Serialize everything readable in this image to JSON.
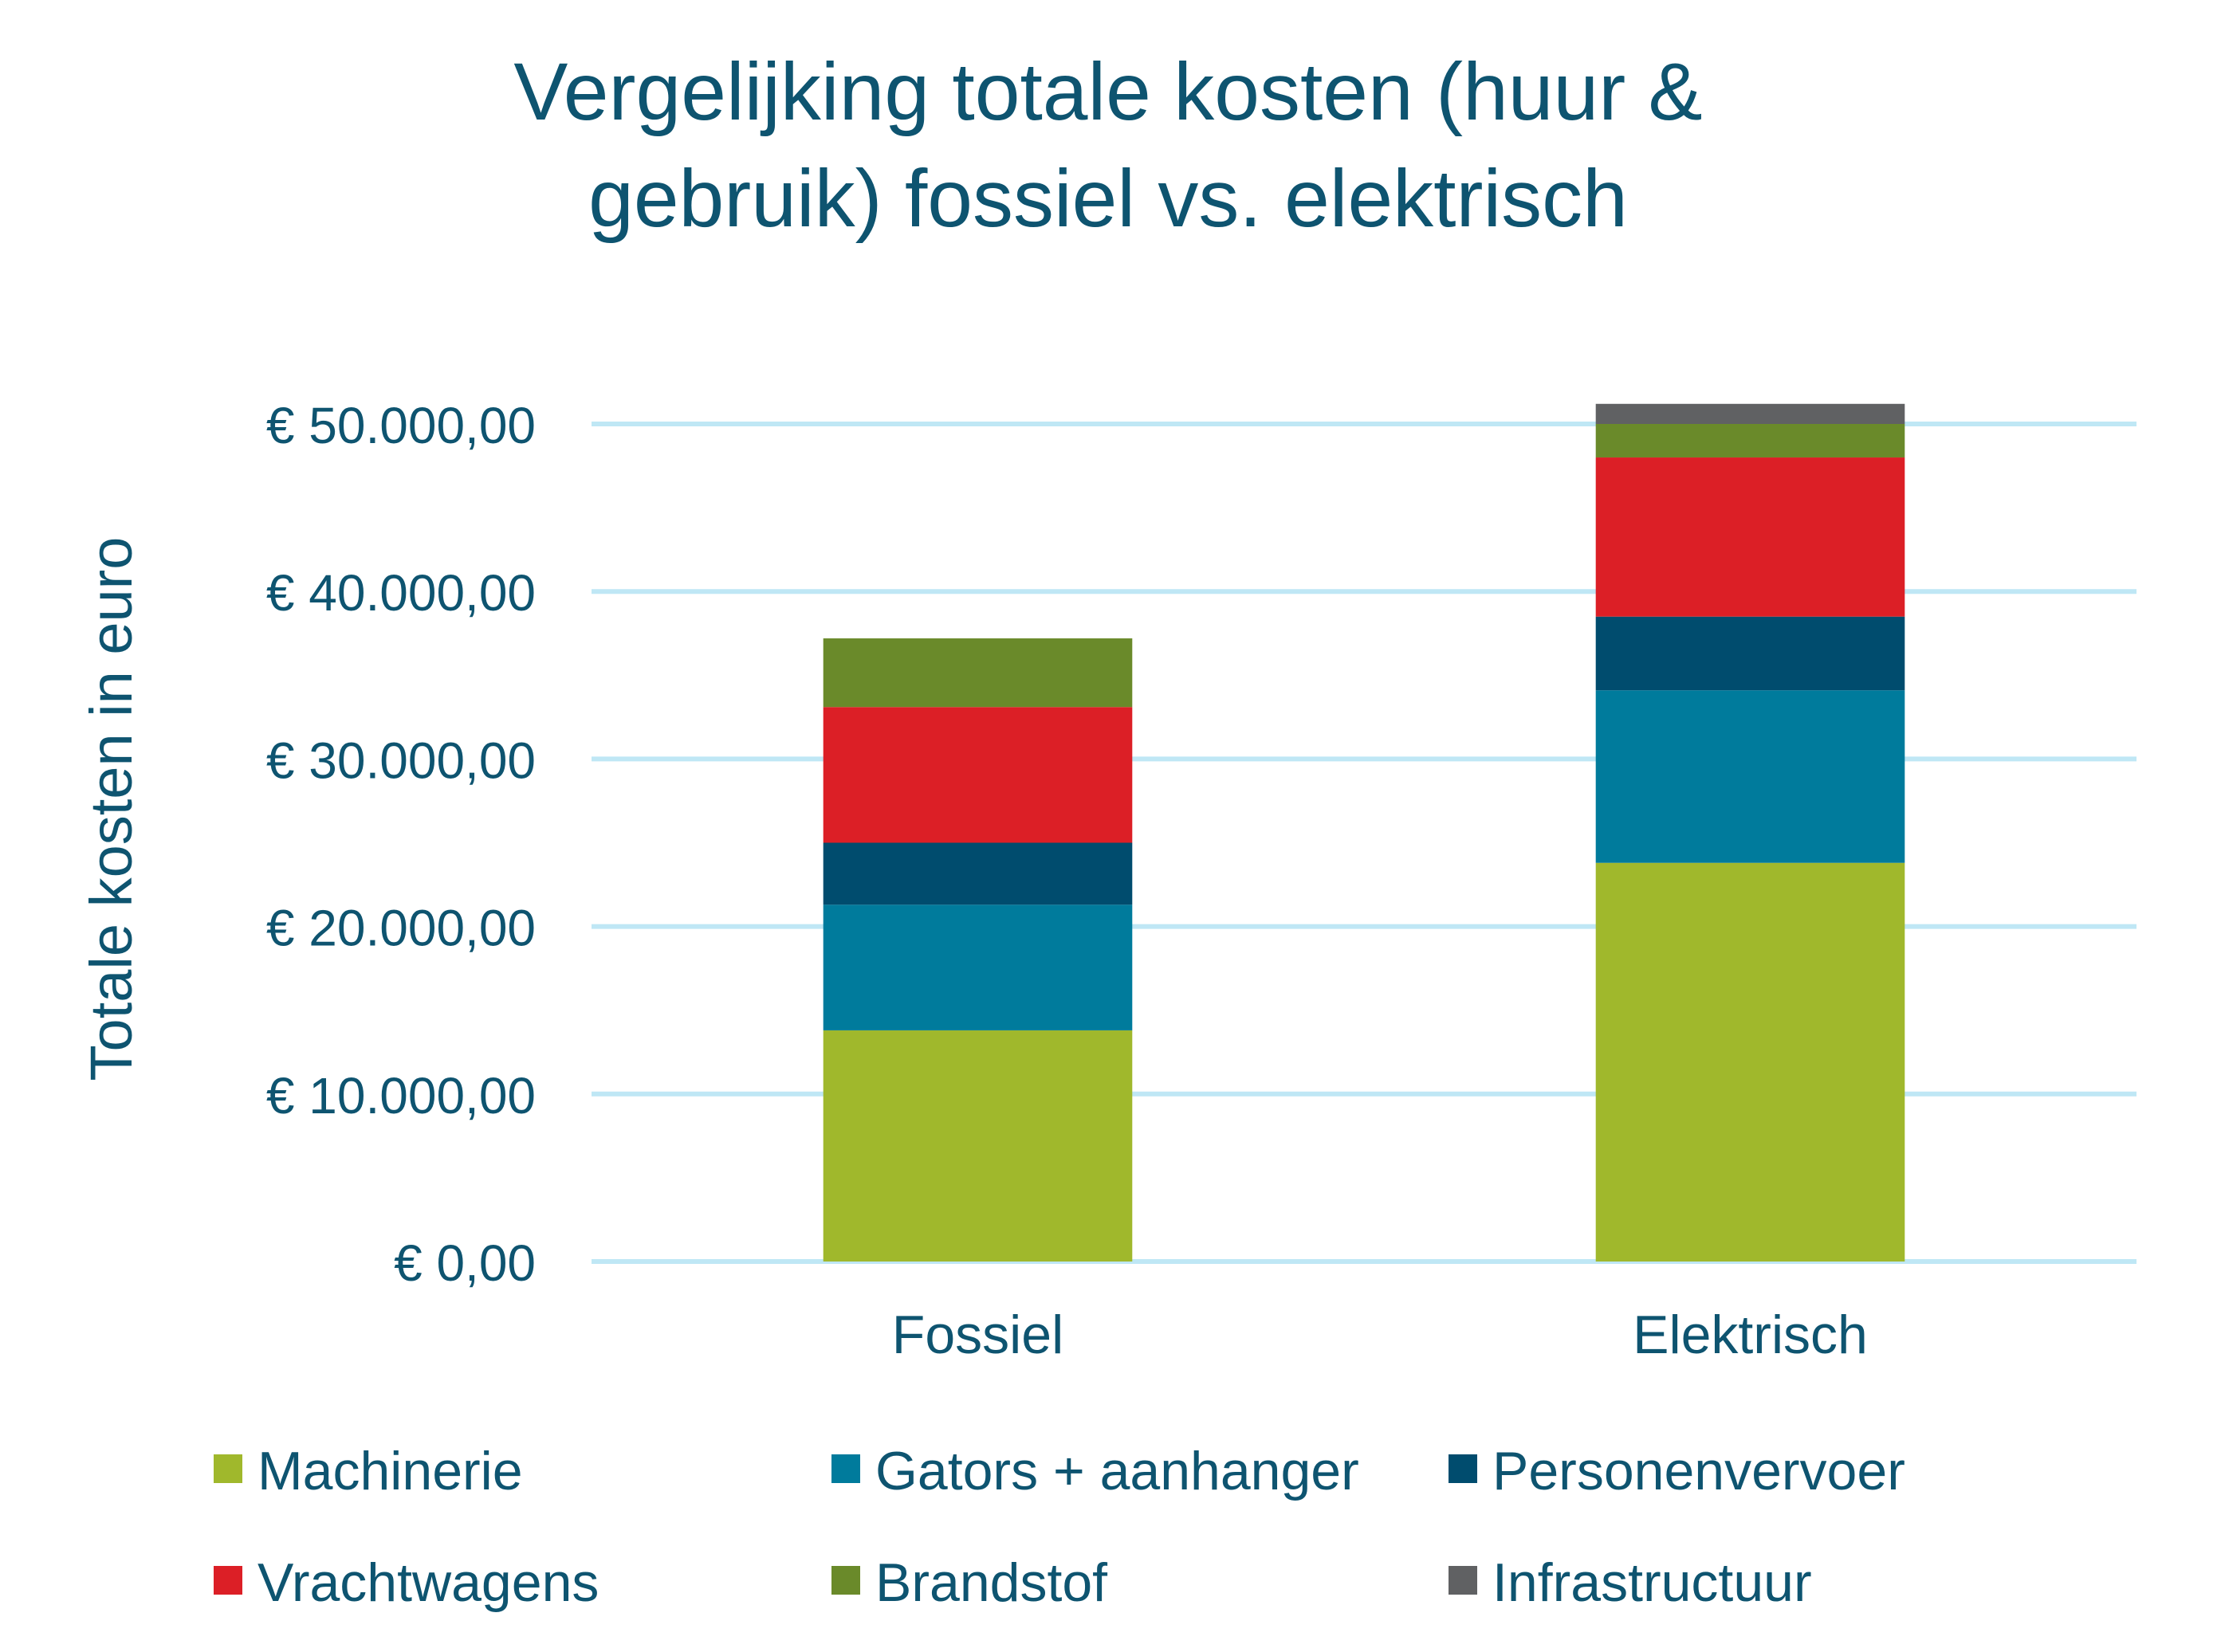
{
  "chart_data": {
    "type": "bar",
    "stacked": true,
    "title_lines": [
      "Vergelijking totale kosten (huur &",
      "gebruik) fossiel vs. elektrisch"
    ],
    "xlabel": "",
    "ylabel": "Totale kosten in euro",
    "ylim": [
      0,
      50000
    ],
    "ytick_values": [
      0,
      10000,
      20000,
      30000,
      40000,
      50000
    ],
    "ytick_labels": [
      "€ 0,00",
      "€ 10.000,00",
      "€ 20.000,00",
      "€ 30.000,00",
      "€ 40.000,00",
      "€ 50.000,00"
    ],
    "grid": true,
    "legend_position": "bottom",
    "categories": [
      "Fossiel",
      "Elektrisch"
    ],
    "series": [
      {
        "name": "Machinerie",
        "color": "#a0b82c",
        "values": [
          13800,
          23800
        ]
      },
      {
        "name": "Gators + aanhanger",
        "color": "#007b9c",
        "values": [
          7500,
          10300
        ]
      },
      {
        "name": "Personenvervoer",
        "color": "#004c6e",
        "values": [
          3700,
          4400
        ]
      },
      {
        "name": "Vrachtwagens",
        "color": "#dc1f26",
        "values": [
          8100,
          9500
        ]
      },
      {
        "name": "Brandstof",
        "color": "#6a8a2a",
        "values": [
          4100,
          2000
        ]
      },
      {
        "name": "Infrastructuur",
        "color": "#606163",
        "values": [
          0,
          1200
        ]
      }
    ],
    "colors": {
      "text": "#0e5470",
      "grid": "#bfe7f5"
    }
  }
}
